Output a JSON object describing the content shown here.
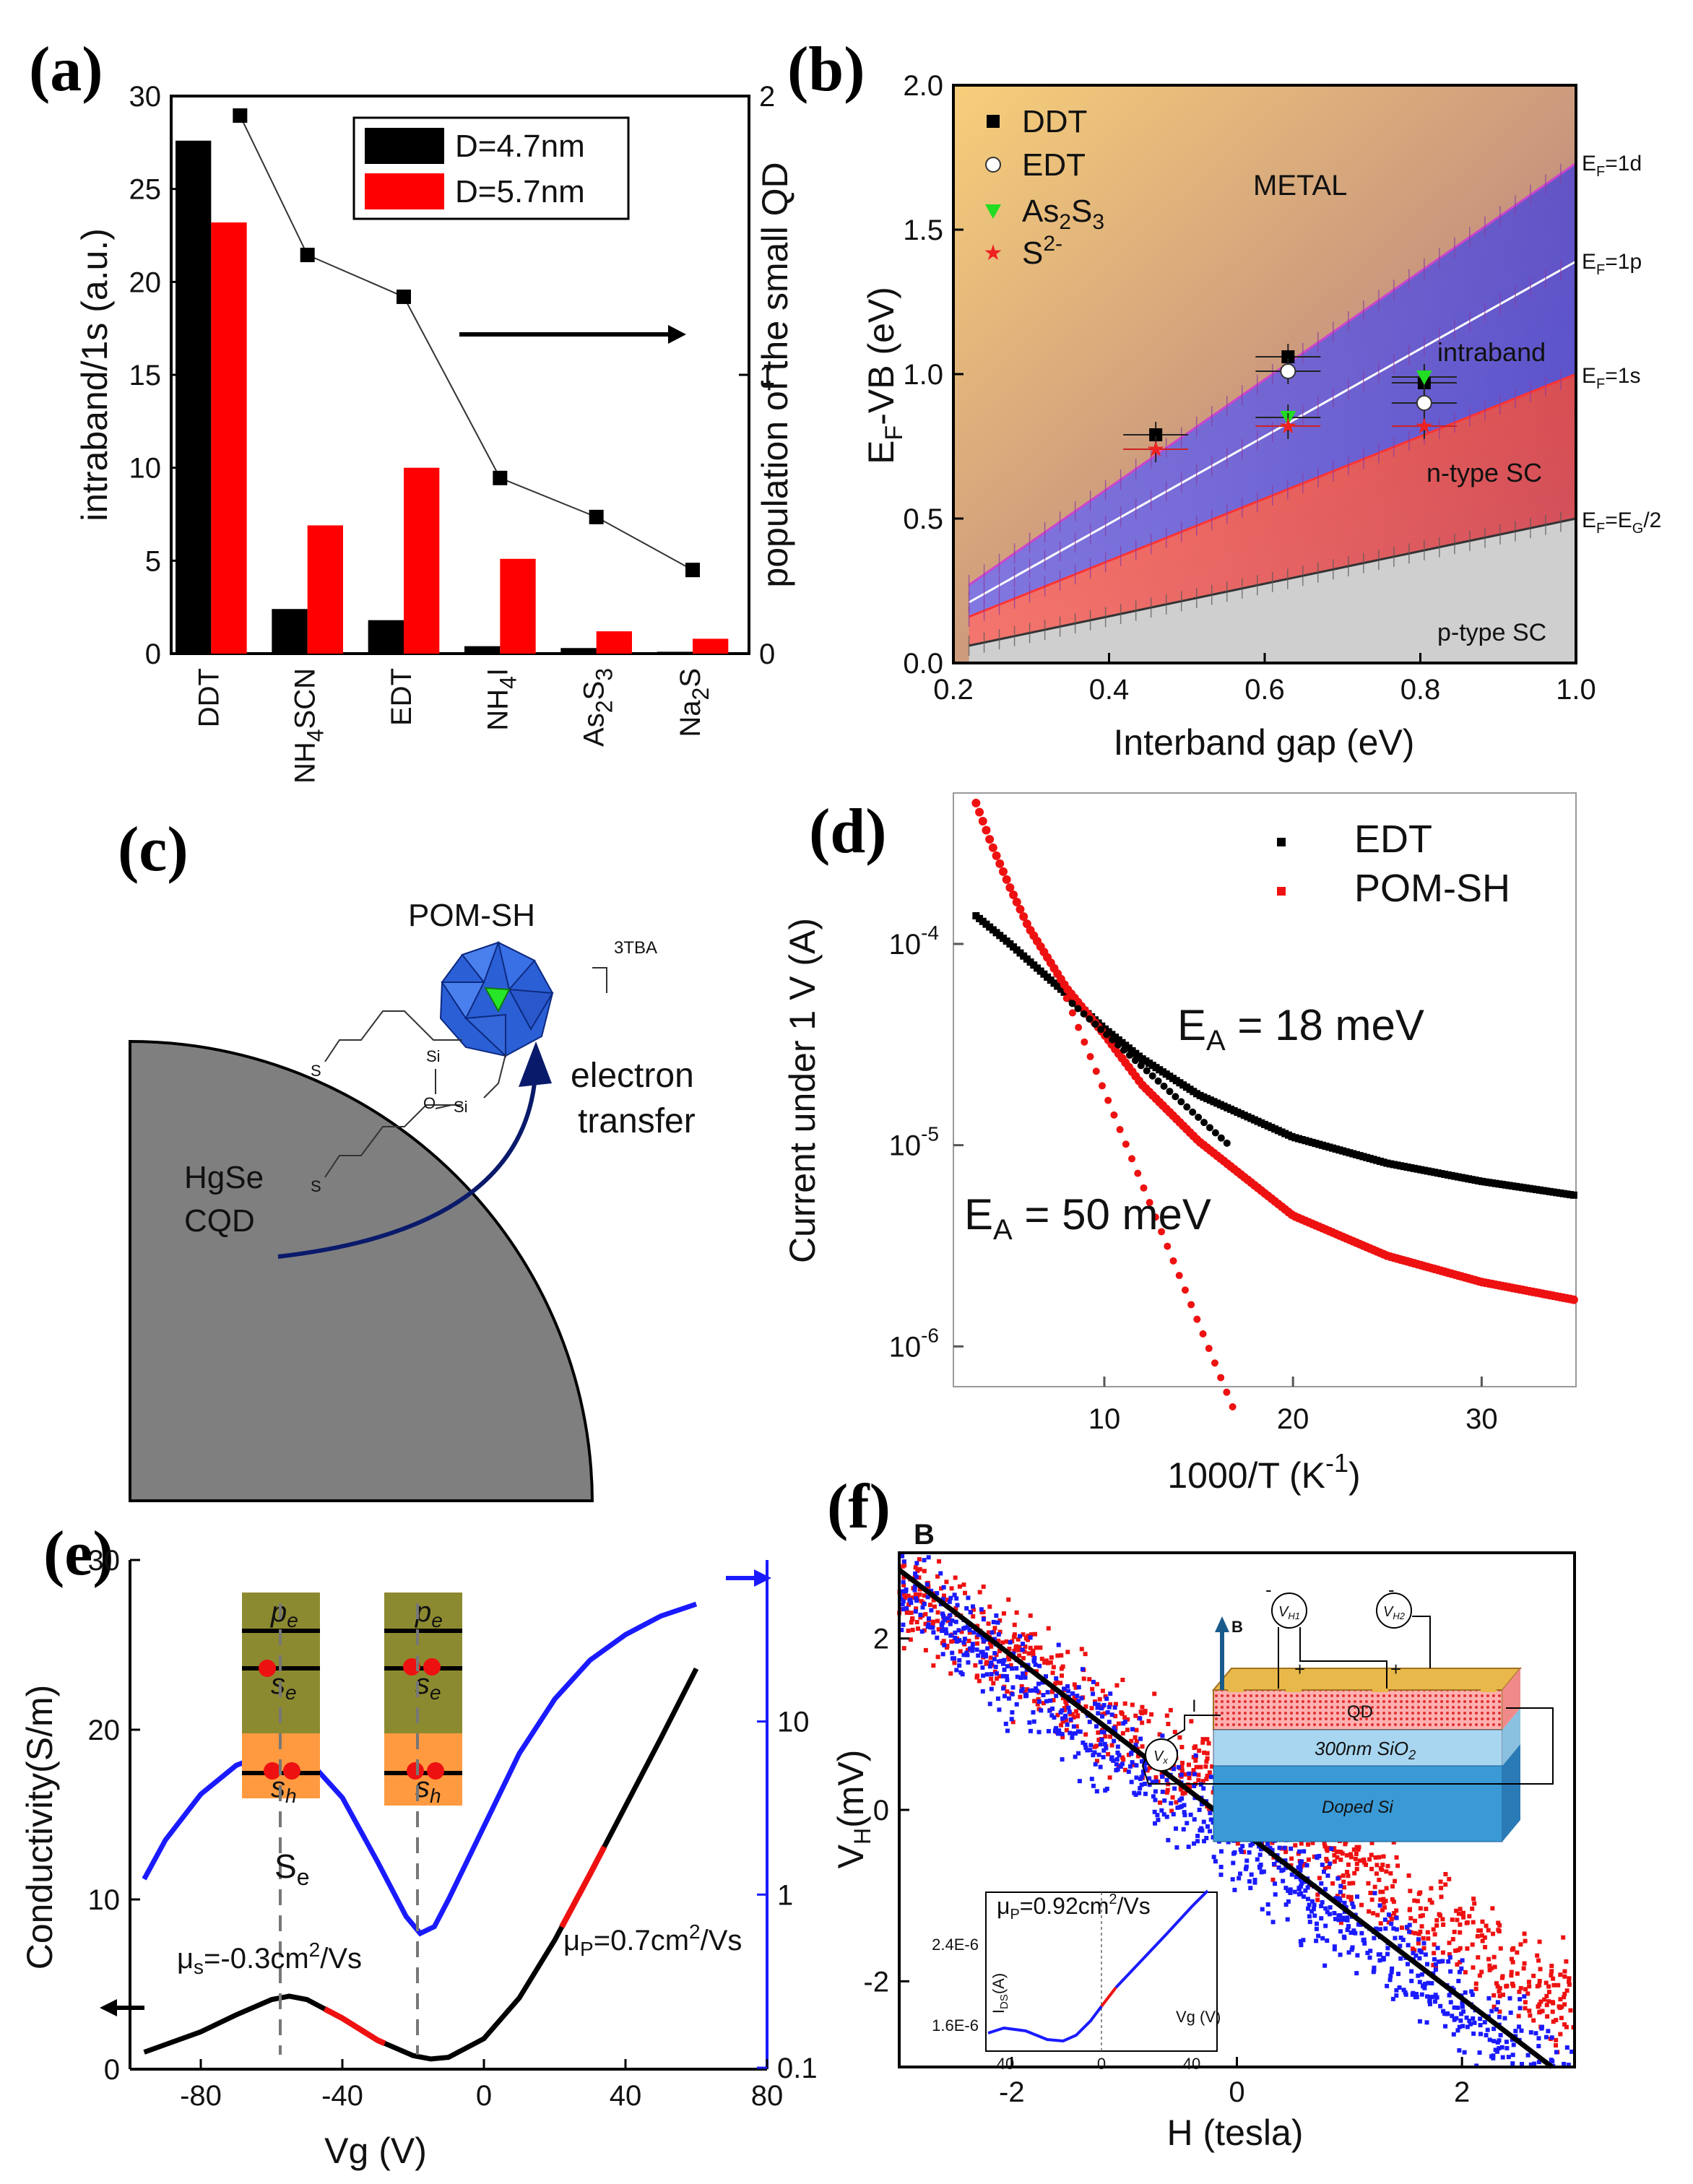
{
  "figure_labels": {
    "a": "(a)",
    "b": "(b)",
    "c": "(c)",
    "d": "(d)",
    "e": "(e)",
    "f": "(f)"
  },
  "colors": {
    "black": "#000000",
    "red": "#e00000",
    "blue": "#1a1aff",
    "navy": "#0a1a6b",
    "green": "#27e627"
  },
  "chart_data": [
    {
      "panel": "a",
      "type": "bar",
      "categories": [
        "DDT",
        "NH4SCN",
        "EDT",
        "NH4I",
        "As2S3",
        "Na2S"
      ],
      "category_labels": [
        {
          "main": "DDT",
          "sub": "",
          "tail": ""
        },
        {
          "main": "NH",
          "sub": "4",
          "tail": "SCN"
        },
        {
          "main": "EDT",
          "sub": "",
          "tail": ""
        },
        {
          "main": "NH",
          "sub": "4",
          "tail": "I"
        },
        {
          "main": "As",
          "sub": "2",
          "tail": "S",
          "sub2": "3"
        },
        {
          "main": "Na",
          "sub": "2",
          "tail": "S"
        }
      ],
      "series": [
        {
          "name": "D=4.7nm",
          "color": "#000000",
          "values": [
            27.6,
            2.4,
            1.8,
            0.4,
            0.3,
            0.1
          ]
        },
        {
          "name": "D=5.7nm",
          "color": "#ff0000",
          "values": [
            23.2,
            6.9,
            10.0,
            5.1,
            1.2,
            0.8
          ]
        }
      ],
      "line_series": {
        "name": "population of the small QD",
        "values": [
          1.93,
          1.43,
          1.28,
          0.63,
          0.49,
          0.3
        ]
      },
      "ylim": [
        0,
        30
      ],
      "y_ticks": [
        "0",
        "5",
        "10",
        "15",
        "20",
        "25",
        "30"
      ],
      "y2lim": [
        0,
        2
      ],
      "y2_ticks": [
        "0",
        "1",
        "2"
      ],
      "ylabel": "intraband/1s (a.u.)",
      "y2label": "population of the small QD",
      "legend": [
        "D=4.7nm",
        "D=5.7nm"
      ]
    },
    {
      "panel": "b",
      "type": "scatter",
      "xlabel": "Interband gap (eV)",
      "ylabel_main": "E",
      "ylabel_sub": "F",
      "ylabel_tail": "-VB (eV)",
      "xlim": [
        0.2,
        1.0
      ],
      "ylim": [
        0,
        2.0
      ],
      "x_ticks": [
        "0.2",
        "0.4",
        "0.6",
        "0.8",
        "1.0"
      ],
      "y_ticks": [
        "0.0",
        "0.5",
        "1.0",
        "1.5",
        "2.0"
      ],
      "lines": [
        {
          "name": "EF=1d",
          "label_main": "E",
          "label_sub": "F",
          "label_tail": "=1d",
          "y_at_x": [
            [
              0.22,
              0.27
            ],
            [
              1.0,
              1.73
            ]
          ]
        },
        {
          "name": "EF=1p",
          "label_main": "E",
          "label_sub": "F",
          "label_tail": "=1p",
          "y_at_x": [
            [
              0.22,
              0.21
            ],
            [
              1.0,
              1.39
            ]
          ]
        },
        {
          "name": "EF=1s",
          "label_main": "E",
          "label_sub": "F",
          "label_tail": "=1s",
          "y_at_x": [
            [
              0.22,
              0.16
            ],
            [
              1.0,
              1.0
            ]
          ]
        },
        {
          "name": "EF=EG/2",
          "label_main": "E",
          "label_sub": "F",
          "label_tail": "=E",
          "label_sub2": "G",
          "label_tail2": "/2",
          "y_at_x": [
            [
              0.22,
              0.06
            ],
            [
              1.0,
              0.5
            ]
          ]
        }
      ],
      "regions": [
        "METAL",
        "intraband",
        "n-type SC",
        "p-type SC"
      ],
      "series": [
        {
          "name": "DDT",
          "marker": "square",
          "color": "#000000",
          "points": [
            [
              0.46,
              0.79
            ],
            [
              0.63,
              1.06
            ],
            [
              0.805,
              0.97
            ]
          ]
        },
        {
          "name": "EDT",
          "marker": "circle",
          "color": "#ffffff",
          "points": [
            [
              0.63,
              1.01
            ],
            [
              0.805,
              0.9
            ]
          ]
        },
        {
          "name": "As2S3",
          "marker": "triangle",
          "color": "#22dd22",
          "points": [
            [
              0.63,
              0.85
            ],
            [
              0.805,
              0.99
            ]
          ]
        },
        {
          "name": "S2-",
          "marker": "star",
          "color": "#ee2222",
          "points": [
            [
              0.46,
              0.74
            ],
            [
              0.63,
              0.82
            ],
            [
              0.805,
              0.82
            ]
          ]
        }
      ],
      "legend_entries": [
        {
          "main": "DDT"
        },
        {
          "main": "EDT"
        },
        {
          "main": "As",
          "sub": "2",
          "tail": "S",
          "sub2": "3"
        },
        {
          "main": "S",
          "sup": "2-"
        }
      ]
    },
    {
      "panel": "d",
      "type": "scatter",
      "xlabel_main": "1000/T (K",
      "xlabel_sup": "-1",
      "xlabel_tail": ")",
      "ylabel": "Current under 1 V (A)",
      "xlim": [
        2,
        35
      ],
      "ylim_log10": [
        -6.2,
        -3.25
      ],
      "x_ticks": [
        "10",
        "20",
        "30"
      ],
      "y_ticks": [
        {
          "base": "10",
          "exp": "-4"
        },
        {
          "base": "10",
          "exp": "-5"
        },
        {
          "base": "10",
          "exp": "-6"
        }
      ],
      "series": [
        {
          "name": "EDT",
          "color": "#000000",
          "points_log10": [
            [
              3.2,
              -3.86
            ],
            [
              5,
              -4.0
            ],
            [
              8,
              -4.25
            ],
            [
              10,
              -4.42
            ],
            [
              12,
              -4.57
            ],
            [
              15,
              -4.75
            ],
            [
              20,
              -4.96
            ],
            [
              25,
              -5.09
            ],
            [
              30,
              -5.18
            ],
            [
              35,
              -5.25
            ]
          ]
        },
        {
          "name": "POM-SH",
          "color": "#ee1111",
          "points_log10": [
            [
              3.2,
              -3.3
            ],
            [
              4,
              -3.5
            ],
            [
              5,
              -3.72
            ],
            [
              6,
              -3.92
            ],
            [
              8,
              -4.22
            ],
            [
              10,
              -4.45
            ],
            [
              12,
              -4.7
            ],
            [
              15,
              -4.98
            ],
            [
              20,
              -5.35
            ],
            [
              25,
              -5.55
            ],
            [
              30,
              -5.68
            ],
            [
              35,
              -5.77
            ]
          ]
        }
      ],
      "fits": [
        {
          "name": "EA = 18 meV",
          "color": "#000000",
          "from": [
            8,
            -4.27
          ],
          "to": [
            16.5,
            -4.99
          ]
        },
        {
          "name": "EA = 50 meV",
          "color": "#ee1111",
          "from": [
            8,
            -4.27
          ],
          "to": [
            16.8,
            -6.3
          ]
        }
      ],
      "annotations": {
        "ea1_main": "E",
        "ea1_sub": "A",
        "ea1_tail": " = 18 meV",
        "ea2_main": "E",
        "ea2_sub": "A",
        "ea2_tail": " = 50 meV"
      },
      "legend": [
        "EDT",
        "POM-SH"
      ]
    },
    {
      "panel": "e",
      "type": "line",
      "xlabel": "Vg (V)",
      "ylabel": "Conductivity(S/m)",
      "xlim": [
        -100,
        80
      ],
      "ylim": [
        0,
        30
      ],
      "y2_ticks": [
        "0.1",
        "1",
        "10"
      ],
      "x_ticks": [
        "-80",
        "-40",
        "0",
        "40",
        "80"
      ],
      "y_ticks": [
        "0",
        "10",
        "20",
        "30"
      ],
      "series": [
        {
          "name": "conductivity",
          "color": "#000000",
          "points": [
            [
              -96,
              1.0
            ],
            [
              -80,
              2.2
            ],
            [
              -70,
              3.2
            ],
            [
              -60,
              4.1
            ],
            [
              -55,
              4.3
            ],
            [
              -50,
              4.1
            ],
            [
              -40,
              3.0
            ],
            [
              -30,
              1.7
            ],
            [
              -20,
              0.8
            ],
            [
              -15,
              0.6
            ],
            [
              -10,
              0.7
            ],
            [
              0,
              1.8
            ],
            [
              10,
              4.2
            ],
            [
              20,
              7.6
            ],
            [
              30,
              11.5
            ],
            [
              40,
              15.5
            ],
            [
              50,
              19.5
            ],
            [
              60,
              23.6
            ]
          ]
        },
        {
          "name": "mobility-axis curve",
          "color": "#1a1aff",
          "points": [
            [
              -96,
              11.2
            ],
            [
              -90,
              13.5
            ],
            [
              -80,
              16.2
            ],
            [
              -70,
              17.9
            ],
            [
              -60,
              18.7
            ],
            [
              -55,
              18.8
            ],
            [
              -50,
              18.3
            ],
            [
              -40,
              16.0
            ],
            [
              -30,
              12.2
            ],
            [
              -22,
              9.0
            ],
            [
              -18,
              8.0
            ],
            [
              -14,
              8.4
            ],
            [
              -10,
              10.0
            ],
            [
              0,
              14.3
            ],
            [
              10,
              18.6
            ],
            [
              20,
              21.8
            ],
            [
              30,
              24.1
            ],
            [
              40,
              25.6
            ],
            [
              50,
              26.7
            ],
            [
              60,
              27.4
            ]
          ]
        }
      ],
      "fit_segments": [
        [
          -45,
          -28
        ],
        [
          22,
          34
        ]
      ],
      "annotations": {
        "mu_s": "=-0.3cm",
        "mu_p": "=0.7cm",
        "unit_tail": "/Vs",
        "se_label": "S",
        "se_sub": "e"
      },
      "level_labels": {
        "pe": "p",
        "pe_sub": "e",
        "se": "s",
        "se_sub": "e",
        "sh": "s",
        "sh_sub": "h"
      }
    },
    {
      "panel": "f",
      "type": "scatter",
      "xlabel": "H (tesla)",
      "ylabel_main": "V",
      "ylabel_sub": "H",
      "ylabel_tail": "(mV)",
      "xlim": [
        -3,
        3
      ],
      "ylim": [
        -3,
        3
      ],
      "x_ticks": [
        "-2",
        "0",
        "2"
      ],
      "y_ticks": [
        "2",
        "0",
        "-2"
      ],
      "series": [
        {
          "name": "red",
          "color": "#ee1111",
          "trend": [
            [
              -3,
              2.6
            ],
            [
              3,
              -2.3
            ]
          ]
        },
        {
          "name": "blue",
          "color": "#1a1aff",
          "trend": [
            [
              -3,
              2.6
            ],
            [
              3,
              -3.3
            ]
          ]
        }
      ],
      "fit_line": [
        [
          -3,
          2.8
        ],
        [
          2.8,
          -3.0
        ]
      ],
      "corner_label": "B",
      "inset": {
        "mu_main": "μ",
        "mu_sub": "P",
        "mu_tail": "=0.92cm",
        "mu_sup": "2",
        "mu_end": "/Vs",
        "y_ticks": [
          "2.4E-6",
          "1.6E-6"
        ],
        "x_ticks": [
          "40",
          "0",
          "40"
        ],
        "ylabel_main": "I",
        "ylabel_sub": "DS",
        "ylabel_tail": "(A)",
        "xlabel": "Vg (V)"
      },
      "device": {
        "qd": "QD",
        "oxide": "300nm SiO",
        "oxide_sub": "2",
        "substrate": "Doped Si",
        "b": "B",
        "vh1_main": "V",
        "vh1_sub": "H1",
        "vh2_main": "V",
        "vh2_sub": "H2",
        "vx_main": "V",
        "vx_sub": "x",
        "current": "I",
        "plus": "+",
        "minus": "-"
      }
    }
  ],
  "panel_c": {
    "title": "POM-SH",
    "tba": "3TBA",
    "crystal_line1": "HgSe",
    "crystal_line2": "CQD",
    "arrow_line1": "electron",
    "arrow_line2": "transfer",
    "atoms": {
      "si1": "Si",
      "si2": "Si",
      "o": "O",
      "s1": "S",
      "s2": "S"
    }
  }
}
